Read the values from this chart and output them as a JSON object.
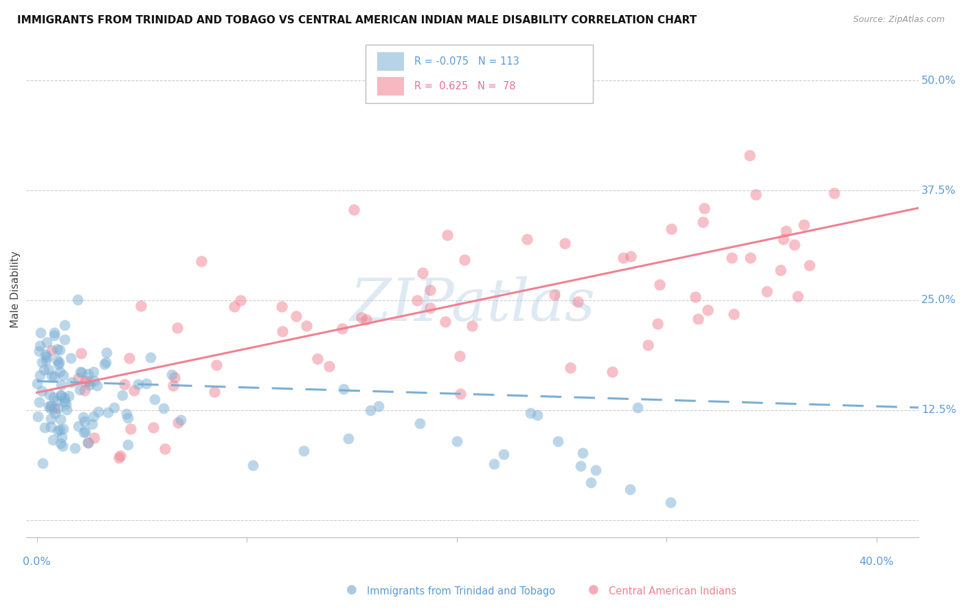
{
  "title": "IMMIGRANTS FROM TRINIDAD AND TOBAGO VS CENTRAL AMERICAN INDIAN MALE DISABILITY CORRELATION CHART",
  "source": "Source: ZipAtlas.com",
  "ylabel": "Male Disability",
  "y_ticks": [
    0.0,
    0.125,
    0.25,
    0.375,
    0.5
  ],
  "y_tick_labels": [
    "",
    "12.5%",
    "25.0%",
    "37.5%",
    "50.0%"
  ],
  "xlim": [
    -0.005,
    0.42
  ],
  "ylim": [
    -0.02,
    0.545
  ],
  "series1_name": "Immigrants from Trinidad and Tobago",
  "series2_name": "Central American Indians",
  "series1_color": "#7bafd4",
  "series2_color": "#f08090",
  "series1_R": -0.075,
  "series1_N": 113,
  "series2_R": 0.625,
  "series2_N": 78,
  "watermark": "ZIPatlas",
  "background_color": "#ffffff",
  "grid_color": "#cccccc",
  "tick_label_color": "#5b9bd5",
  "legend_text_color1": "#5b9bd5",
  "legend_text_color2": "#e87090",
  "line1_start_x": 0.0,
  "line1_end_x": 0.42,
  "line1_start_y": 0.158,
  "line1_end_y": 0.128,
  "line2_start_x": 0.0,
  "line2_end_x": 0.42,
  "line2_start_y": 0.145,
  "line2_end_y": 0.355
}
